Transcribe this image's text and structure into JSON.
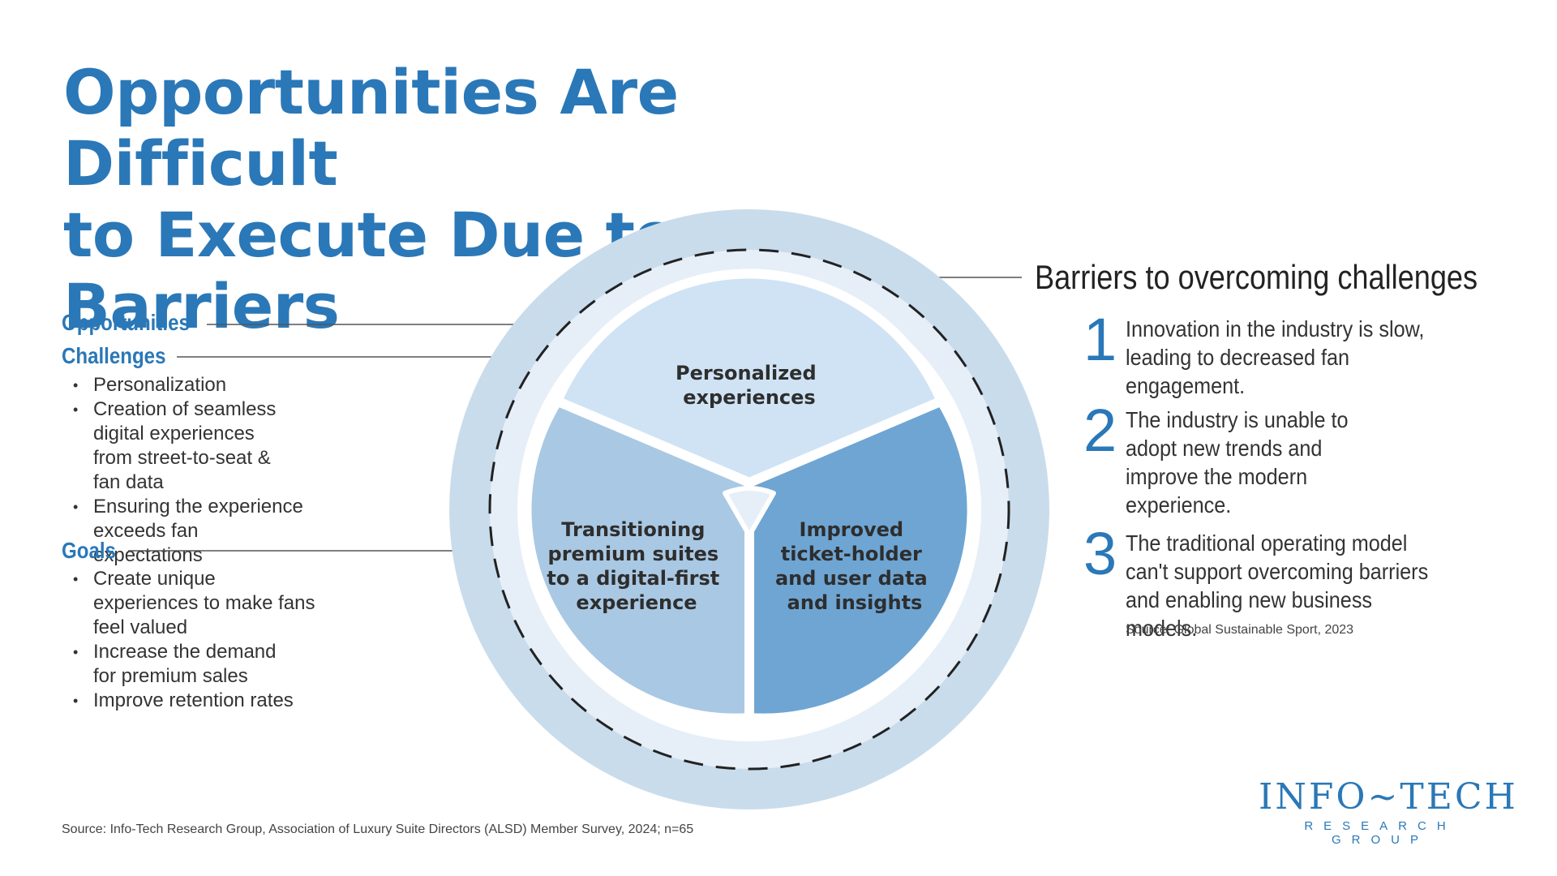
{
  "title": {
    "line1": "Opportunities Are Difficult",
    "line2": "to Execute Due to Barriers"
  },
  "left": {
    "opportunities_label": "Opportunities",
    "challenges_label": "Challenges",
    "challenges": [
      "Personalization",
      "Creation of seamless digital experiences from street-to-seat & fan data",
      "Ensuring the experience exceeds fan expectations"
    ],
    "goals_label": "Goals",
    "goals": [
      "Create unique experiences to make fans feel valued",
      "Increase the demand for premium sales",
      "Improve retention rates"
    ]
  },
  "diagram": {
    "segments": [
      {
        "lines": [
          "Personalized",
          "experiences"
        ]
      },
      {
        "lines": [
          "Transitioning",
          "premium suites",
          "to a digital-first",
          "experience"
        ]
      },
      {
        "lines": [
          "Improved",
          "ticket-holder",
          "and user data",
          "and insights"
        ]
      }
    ]
  },
  "barriers": {
    "title": "Barriers to overcoming challenges",
    "items": [
      {
        "num": "1",
        "text": "Innovation in the industry is slow, leading to decreased fan engagement."
      },
      {
        "num": "2",
        "text": "The industry is unable to adopt new trends and improve the modern experience."
      },
      {
        "num": "3",
        "text": "The traditional operating model can't support overcoming barriers and enabling new business models."
      }
    ],
    "source": "Source: Global Sustainable Sport, 2023"
  },
  "footer": {
    "source": "Source: Info-Tech Research Group, Association of Luxury Suite Directors (ALSD) Member Survey, 2024; n=65"
  },
  "logo": {
    "brand": "INFO~TECH",
    "sub": "RESEARCH GROUP"
  },
  "colors": {
    "accent": "#2a78b8",
    "outer_ring": "#c9dcec",
    "inner_ring": "#e6eff8",
    "segment_top": "#cfe3f4",
    "segment_left": "#a9c8e3",
    "segment_right": "#6ea5d3"
  }
}
